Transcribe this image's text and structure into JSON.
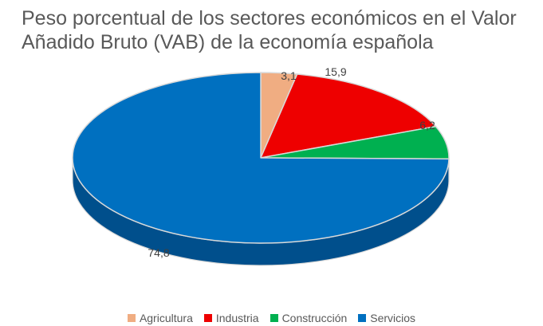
{
  "chart_data": {
    "type": "pie",
    "title": "Peso porcentual de los sectores económicos en el Valor Añadido Bruto (VAB) de la economía española",
    "title_lines": [
      "Peso porcentual de los sectores económicos en el Valor",
      "Añadido Bruto (VAB) de la economía española"
    ],
    "slices": [
      {
        "label": "Agricultura",
        "value": 3.1,
        "display": "3,1",
        "color": "#F0AD82",
        "side_color": "#C98A60"
      },
      {
        "label": "Industria",
        "value": 15.9,
        "display": "15,9",
        "color": "#EE0000",
        "side_color": "#B30000"
      },
      {
        "label": "Construcción",
        "value": 6.2,
        "display": "6,2",
        "color": "#00B050",
        "side_color": "#008A3C"
      },
      {
        "label": "Servicios",
        "value": 74.8,
        "display": "74,8",
        "color": "#0070C0",
        "side_color": "#004F8C"
      }
    ],
    "legend_position": "bottom"
  }
}
